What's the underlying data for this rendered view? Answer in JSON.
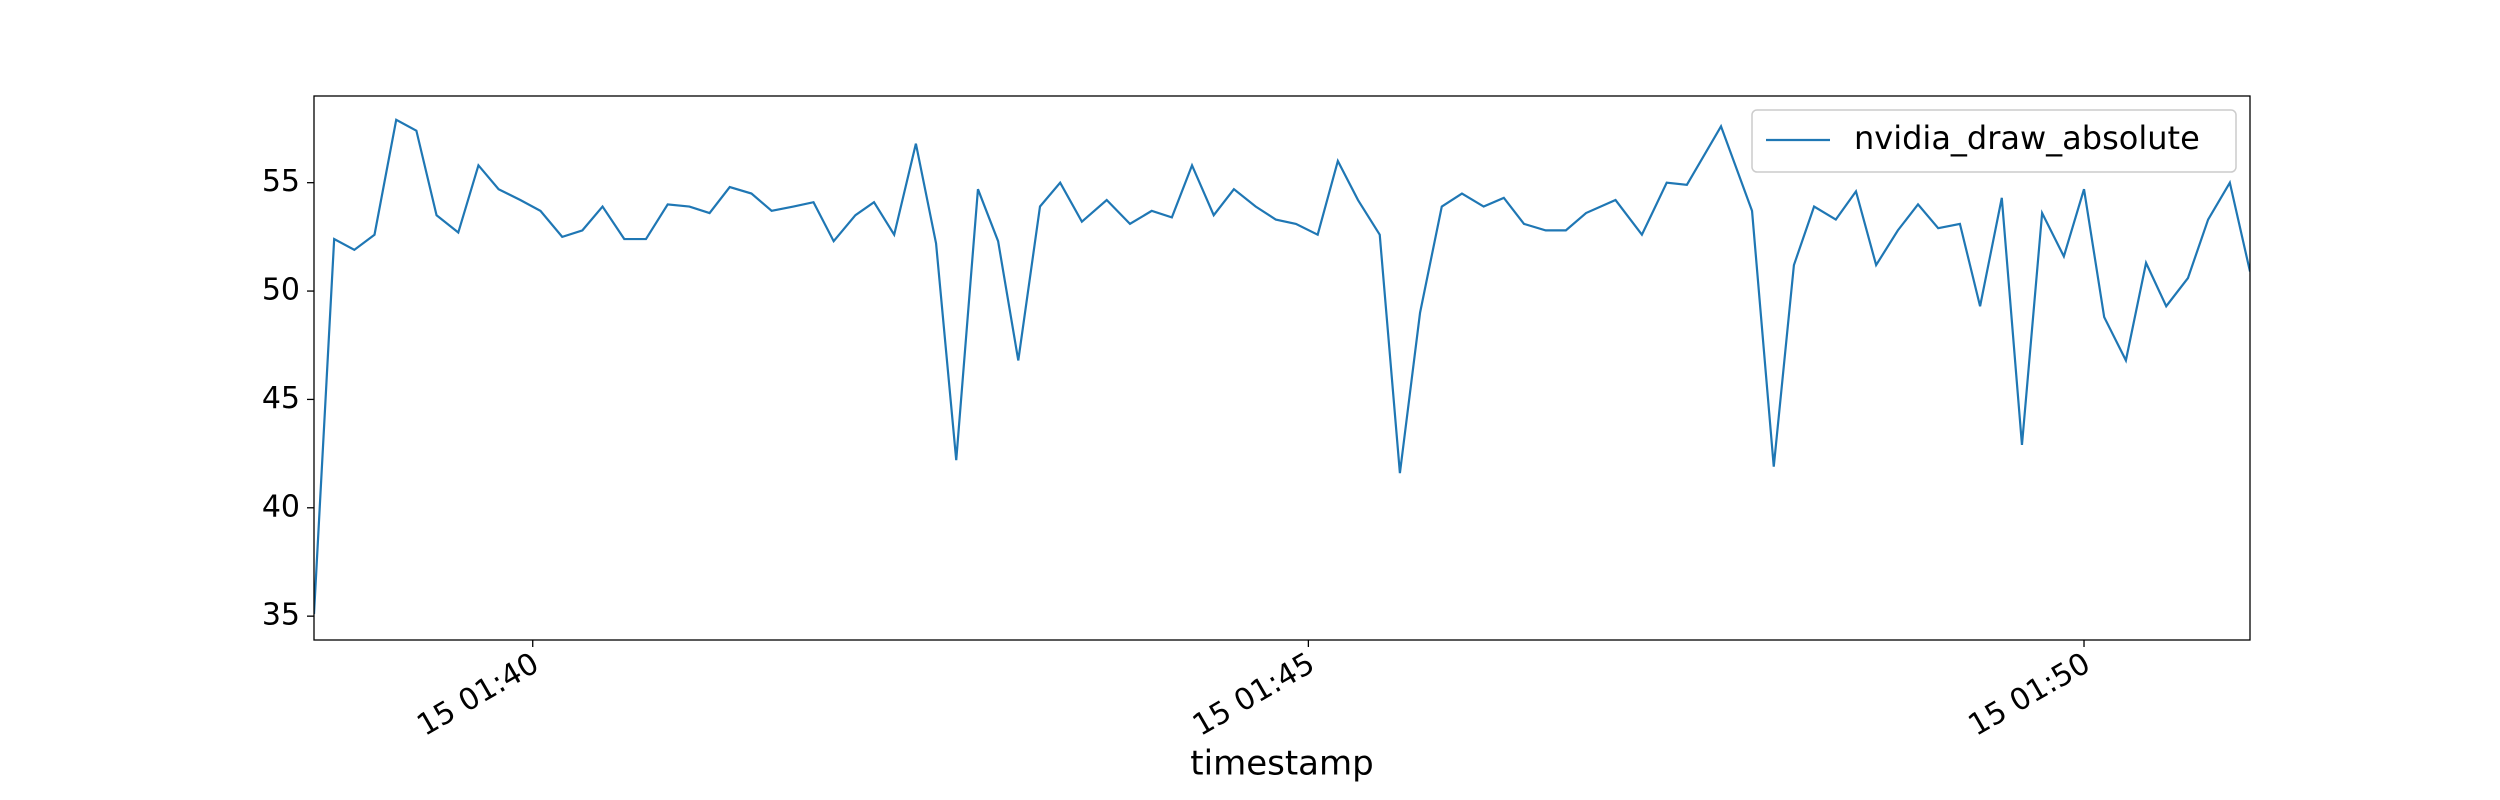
{
  "chart_data": {
    "type": "line",
    "xlabel": "timestamp",
    "legend": "upper right",
    "grid": false,
    "x": [
      38.59,
      38.72,
      38.85,
      38.98,
      39.12,
      39.25,
      39.38,
      39.52,
      39.65,
      39.78,
      39.92,
      40.05,
      40.19,
      40.32,
      40.45,
      40.59,
      40.73,
      40.87,
      41.01,
      41.14,
      41.27,
      41.41,
      41.54,
      41.68,
      41.81,
      41.94,
      42.08,
      42.2,
      42.33,
      42.47,
      42.6,
      42.73,
      42.87,
      43.0,
      43.13,
      43.27,
      43.4,
      43.54,
      43.7,
      43.85,
      43.99,
      44.12,
      44.25,
      44.39,
      44.52,
      44.66,
      44.79,
      44.92,
      45.06,
      45.19,
      45.32,
      45.46,
      45.59,
      45.72,
      45.86,
      45.99,
      46.13,
      46.26,
      46.39,
      46.53,
      46.66,
      46.79,
      46.98,
      47.15,
      47.31,
      47.44,
      47.66,
      47.86,
      48.0,
      48.13,
      48.26,
      48.4,
      48.53,
      48.66,
      48.8,
      48.93,
      49.06,
      49.2,
      49.33,
      49.47,
      49.6,
      49.73,
      49.87,
      50.0,
      50.13,
      50.27,
      50.4,
      50.53,
      50.67,
      50.8,
      50.94,
      51.07
    ],
    "series": [
      {
        "name": "nvidia_draw_absolute",
        "color": "#1f77b4",
        "values": [
          35.1,
          52.4,
          51.9,
          52.6,
          57.9,
          57.4,
          53.5,
          52.7,
          55.8,
          54.7,
          54.2,
          53.7,
          52.5,
          52.8,
          53.9,
          52.4,
          52.4,
          54.0,
          53.9,
          53.6,
          54.8,
          54.5,
          53.7,
          53.9,
          54.1,
          52.3,
          53.5,
          54.1,
          52.6,
          56.8,
          52.2,
          42.2,
          54.7,
          52.3,
          46.8,
          53.9,
          55.0,
          53.2,
          54.2,
          53.1,
          53.7,
          53.4,
          55.8,
          53.5,
          54.7,
          53.9,
          53.3,
          53.1,
          52.6,
          56.0,
          54.2,
          52.6,
          41.6,
          49.0,
          53.9,
          54.5,
          53.9,
          54.3,
          53.1,
          52.8,
          52.8,
          53.6,
          54.2,
          52.6,
          55.0,
          54.9,
          57.6,
          53.7,
          41.9,
          51.2,
          53.9,
          53.3,
          54.6,
          51.2,
          52.8,
          54.0,
          52.9,
          53.1,
          49.3,
          54.3,
          42.9,
          53.6,
          51.6,
          54.7,
          48.8,
          46.8,
          51.3,
          49.3,
          50.6,
          53.3,
          55.0,
          50.9
        ]
      }
    ],
    "xlim": [
      38.59,
      51.07
    ],
    "ylim": [
      33.9,
      59.0
    ],
    "xticks": [
      {
        "value": 40,
        "label": "15 01:40"
      },
      {
        "value": 45,
        "label": "15 01:45"
      },
      {
        "value": 50,
        "label": "15 01:50"
      }
    ],
    "yticks": [
      35,
      40,
      45,
      50,
      55
    ]
  }
}
